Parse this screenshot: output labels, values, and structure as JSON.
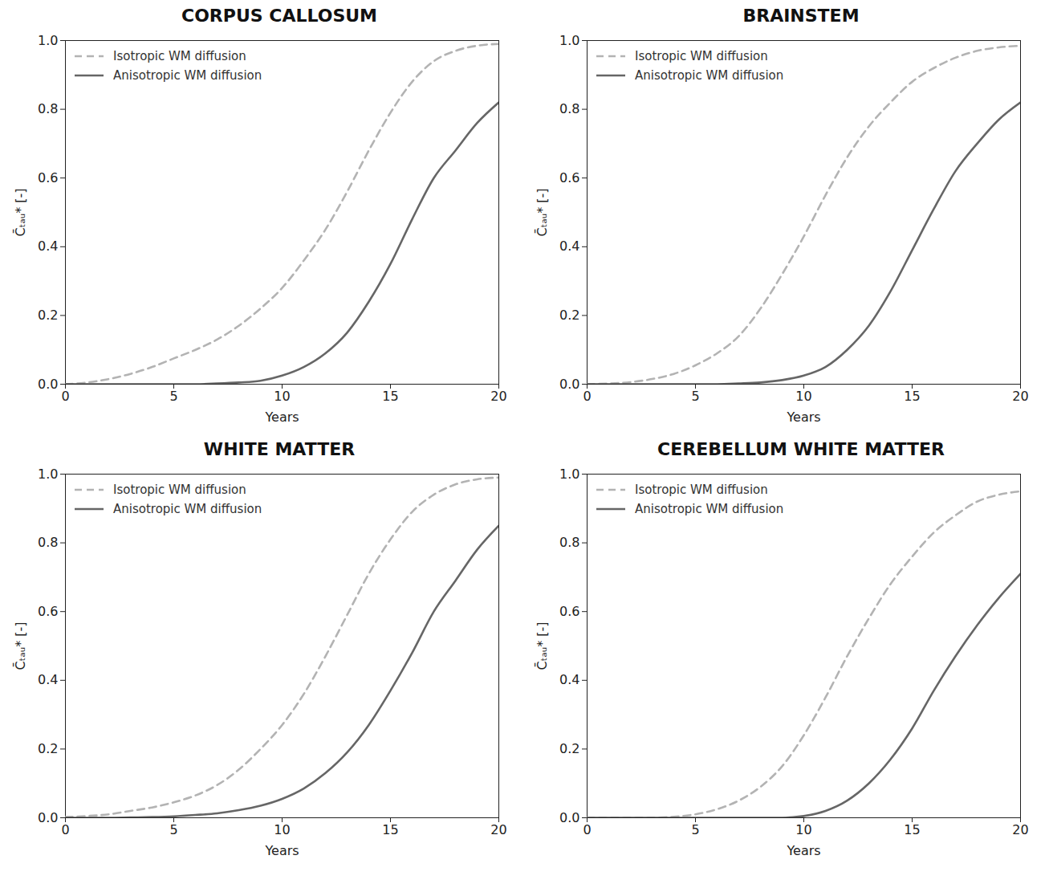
{
  "chart_data": [
    {
      "type": "line",
      "title": "CORPUS CALLOSUM",
      "x_label": "Years",
      "y_label": "C̄ₜₐᵤ* [-]",
      "x": [
        0,
        1,
        2,
        3,
        4,
        5,
        6,
        7,
        8,
        9,
        10,
        11,
        12,
        13,
        14,
        15,
        16,
        17,
        18,
        19,
        20
      ],
      "xlim": [
        0,
        20
      ],
      "ylim": [
        0,
        1
      ],
      "xticks": [
        0,
        5,
        10,
        15,
        20
      ],
      "yticks": [
        {
          "value": 0,
          "label": "0.0"
        },
        {
          "value": 0.2,
          "label": "0.2"
        },
        {
          "value": 0.4,
          "label": "0.4"
        },
        {
          "value": 0.6,
          "label": "0.6"
        },
        {
          "value": 0.8,
          "label": "0.8"
        },
        {
          "value": 1,
          "label": "1.0"
        }
      ],
      "legend": "upper left",
      "series": [
        {
          "name": "Isotropic WM diffusion",
          "color": "#b3b3b3",
          "line_style": "dashed",
          "values": [
            0,
            0.005,
            0.015,
            0.03,
            0.05,
            0.075,
            0.1,
            0.13,
            0.17,
            0.22,
            0.28,
            0.36,
            0.45,
            0.56,
            0.68,
            0.79,
            0.88,
            0.94,
            0.97,
            0.985,
            0.99
          ]
        },
        {
          "name": "Anisotropic WM diffusion",
          "color": "#666666",
          "line_style": "solid",
          "values": [
            0,
            0,
            0,
            0,
            0,
            0,
            0,
            0.002,
            0.005,
            0.01,
            0.025,
            0.05,
            0.09,
            0.15,
            0.24,
            0.35,
            0.48,
            0.6,
            0.68,
            0.76,
            0.82
          ]
        }
      ]
    },
    {
      "type": "line",
      "title": "BRAINSTEM",
      "x_label": "Years",
      "y_label": "C̄ₜₐᵤ* [-]",
      "x": [
        0,
        1,
        2,
        3,
        4,
        5,
        6,
        7,
        8,
        9,
        10,
        11,
        12,
        13,
        14,
        15,
        16,
        17,
        18,
        19,
        20
      ],
      "xlim": [
        0,
        20
      ],
      "ylim": [
        0,
        1
      ],
      "xticks": [
        0,
        5,
        10,
        15,
        20
      ],
      "yticks": [
        {
          "value": 0,
          "label": "0.0"
        },
        {
          "value": 0.2,
          "label": "0.2"
        },
        {
          "value": 0.4,
          "label": "0.4"
        },
        {
          "value": 0.6,
          "label": "0.6"
        },
        {
          "value": 0.8,
          "label": "0.8"
        },
        {
          "value": 1,
          "label": "1.0"
        }
      ],
      "legend": "upper left",
      "series": [
        {
          "name": "Isotropic WM diffusion",
          "color": "#b3b3b3",
          "line_style": "dashed",
          "values": [
            0,
            0.002,
            0.006,
            0.015,
            0.03,
            0.055,
            0.09,
            0.14,
            0.22,
            0.32,
            0.43,
            0.55,
            0.66,
            0.75,
            0.82,
            0.88,
            0.92,
            0.95,
            0.97,
            0.98,
            0.985
          ]
        },
        {
          "name": "Anisotropic WM diffusion",
          "color": "#666666",
          "line_style": "solid",
          "values": [
            0,
            0,
            0,
            0,
            0,
            0,
            0,
            0.002,
            0.005,
            0.012,
            0.025,
            0.05,
            0.1,
            0.17,
            0.27,
            0.39,
            0.51,
            0.62,
            0.7,
            0.77,
            0.82
          ]
        }
      ]
    },
    {
      "type": "line",
      "title": "WHITE MATTER",
      "x_label": "Years",
      "y_label": "C̄ₜₐᵤ* [-]",
      "x": [
        0,
        1,
        2,
        3,
        4,
        5,
        6,
        7,
        8,
        9,
        10,
        11,
        12,
        13,
        14,
        15,
        16,
        17,
        18,
        19,
        20
      ],
      "xlim": [
        0,
        20
      ],
      "ylim": [
        0,
        1
      ],
      "xticks": [
        0,
        5,
        10,
        15,
        20
      ],
      "yticks": [
        {
          "value": 0,
          "label": "0.0"
        },
        {
          "value": 0.2,
          "label": "0.2"
        },
        {
          "value": 0.4,
          "label": "0.4"
        },
        {
          "value": 0.6,
          "label": "0.6"
        },
        {
          "value": 0.8,
          "label": "0.8"
        },
        {
          "value": 1,
          "label": "1.0"
        }
      ],
      "legend": "upper left",
      "series": [
        {
          "name": "Isotropic WM diffusion",
          "color": "#b3b3b3",
          "line_style": "dashed",
          "values": [
            0.002,
            0.005,
            0.01,
            0.02,
            0.03,
            0.045,
            0.065,
            0.095,
            0.14,
            0.2,
            0.27,
            0.36,
            0.47,
            0.59,
            0.71,
            0.81,
            0.89,
            0.94,
            0.97,
            0.985,
            0.99
          ]
        },
        {
          "name": "Anisotropic WM diffusion",
          "color": "#666666",
          "line_style": "solid",
          "values": [
            0,
            0,
            0,
            0.001,
            0.002,
            0.004,
            0.008,
            0.013,
            0.022,
            0.035,
            0.055,
            0.085,
            0.13,
            0.19,
            0.27,
            0.37,
            0.48,
            0.6,
            0.69,
            0.78,
            0.85
          ]
        }
      ]
    },
    {
      "type": "line",
      "title": "CEREBELLUM WHITE MATTER",
      "x_label": "Years",
      "y_label": "C̄ₜₐᵤ* [-]",
      "x": [
        0,
        1,
        2,
        3,
        4,
        5,
        6,
        7,
        8,
        9,
        10,
        11,
        12,
        13,
        14,
        15,
        16,
        17,
        18,
        19,
        20
      ],
      "xlim": [
        0,
        20
      ],
      "ylim": [
        0,
        1
      ],
      "xticks": [
        0,
        5,
        10,
        15,
        20
      ],
      "yticks": [
        {
          "value": 0,
          "label": "0.0"
        },
        {
          "value": 0.2,
          "label": "0.2"
        },
        {
          "value": 0.4,
          "label": "0.4"
        },
        {
          "value": 0.6,
          "label": "0.6"
        },
        {
          "value": 0.8,
          "label": "0.8"
        },
        {
          "value": 1,
          "label": "1.0"
        }
      ],
      "legend": "upper left",
      "series": [
        {
          "name": "Isotropic WM diffusion",
          "color": "#b3b3b3",
          "line_style": "dashed",
          "values": [
            0,
            0,
            0,
            0,
            0.003,
            0.01,
            0.025,
            0.05,
            0.09,
            0.15,
            0.24,
            0.35,
            0.47,
            0.58,
            0.68,
            0.76,
            0.83,
            0.88,
            0.92,
            0.94,
            0.95
          ]
        },
        {
          "name": "Anisotropic WM diffusion",
          "color": "#666666",
          "line_style": "solid",
          "values": [
            0,
            0,
            0,
            0,
            0,
            0,
            0,
            0,
            0,
            0,
            0.005,
            0.02,
            0.05,
            0.1,
            0.17,
            0.26,
            0.37,
            0.47,
            0.56,
            0.64,
            0.71
          ]
        }
      ]
    }
  ]
}
